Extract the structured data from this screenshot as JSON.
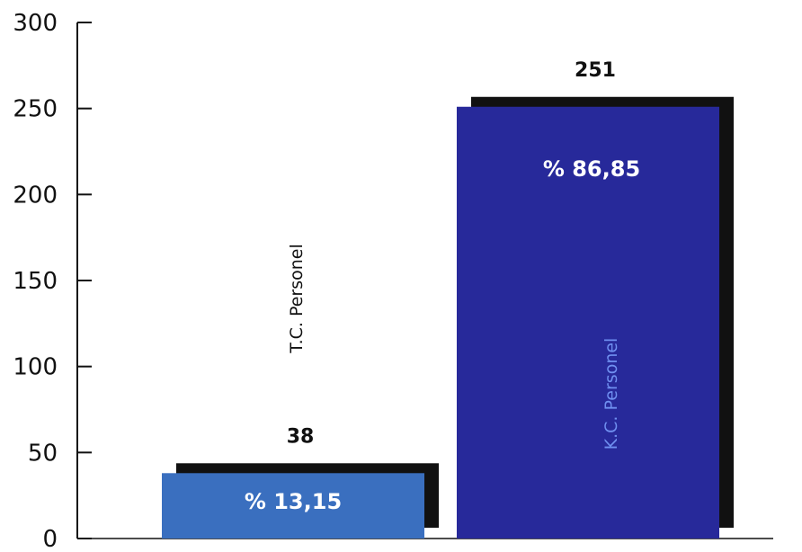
{
  "chart_data": {
    "type": "bar",
    "categories": [
      "T.C. Personel",
      "K.C. Personel"
    ],
    "values": [
      38,
      251
    ],
    "value_labels": [
      "38",
      "251"
    ],
    "percent_labels": [
      "% 13,15",
      "% 86,85"
    ],
    "ylim": [
      0,
      300
    ],
    "yticks": [
      0,
      50,
      100,
      150,
      200,
      250,
      300
    ],
    "grid": false,
    "colors": [
      "#3a6fbf",
      "#27299a"
    ],
    "shadow_color": "#111111",
    "category_label_colors": [
      "#111111",
      "#6f8ff0"
    ]
  }
}
